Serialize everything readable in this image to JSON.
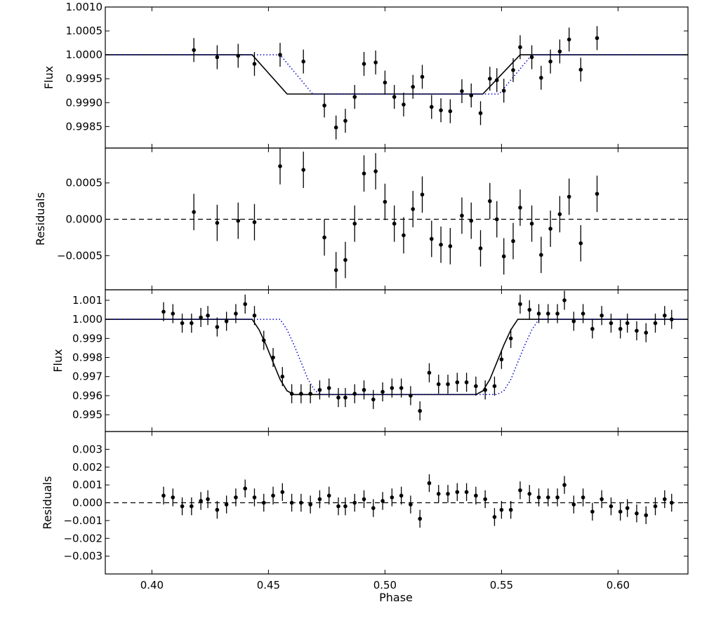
{
  "chart_data": {
    "type": "scatter",
    "xlabel": "Phase",
    "xlim": [
      0.38,
      0.63
    ],
    "xticks": [
      "0.40",
      "0.45",
      "0.50",
      "0.55",
      "0.60"
    ],
    "xtick_values": [
      0.4,
      0.45,
      0.5,
      0.55,
      0.6
    ],
    "grid": false,
    "panels": [
      {
        "id": "flux-top",
        "ylabel": "Flux",
        "ylim": [
          0.99805,
          1.001
        ],
        "yticks": [
          "0.9985",
          "0.9990",
          "0.9995",
          "1.0000",
          "1.0005",
          "1.0010"
        ],
        "ytick_values": [
          0.9985,
          0.999,
          0.9995,
          1.0,
          1.0005,
          1.001
        ],
        "points": {
          "x": [
            0.418,
            0.428,
            0.437,
            0.444,
            0.455,
            0.465,
            0.474,
            0.479,
            0.483,
            0.487,
            0.491,
            0.496,
            0.5,
            0.504,
            0.508,
            0.512,
            0.516,
            0.52,
            0.524,
            0.528,
            0.533,
            0.537,
            0.541,
            0.545,
            0.548,
            0.551,
            0.555,
            0.558,
            0.563,
            0.567,
            0.571,
            0.575,
            0.579,
            0.584,
            0.591
          ],
          "y": [
            1.0001,
            0.99995,
            0.99998,
            0.99981,
            1.0,
            0.99986,
            0.99894,
            0.99848,
            0.99862,
            0.99912,
            0.99981,
            0.99984,
            0.99942,
            0.99912,
            0.99896,
            0.99933,
            0.99954,
            0.99891,
            0.99884,
            0.99882,
            0.99924,
            0.99915,
            0.99878,
            0.9995,
            0.99947,
            0.99925,
            0.99968,
            1.00016,
            0.99995,
            0.99952,
            0.99986,
            1.00007,
            1.00032,
            0.99969,
            1.00035
          ],
          "err": [
            0.00025,
            0.00025,
            0.00025,
            0.00025,
            0.00025,
            0.00025,
            0.00025,
            0.00025,
            0.00025,
            0.00025,
            0.00025,
            0.00025,
            0.00025,
            0.00025,
            0.00025,
            0.00025,
            0.00025,
            0.00025,
            0.00025,
            0.00025,
            0.00025,
            0.00025,
            0.00025,
            0.00025,
            0.00025,
            0.00025,
            0.00025,
            0.00025,
            0.00025,
            0.00025,
            0.00025,
            0.00025,
            0.00025,
            0.00025,
            0.00025
          ]
        },
        "models": [
          {
            "style": "solid",
            "color": "#000000",
            "x": [
              0.38,
              0.443,
              0.458,
              0.542,
              0.558,
              0.63
            ],
            "y": [
              1.0,
              1.0,
              0.99918,
              0.99918,
              1.0,
              1.0
            ]
          },
          {
            "style": "dotted",
            "color": "#0000cc",
            "x": [
              0.38,
              0.455,
              0.469,
              0.549,
              0.563,
              0.63
            ],
            "y": [
              1.0,
              1.0,
              0.99918,
              0.99918,
              1.0,
              1.0
            ]
          }
        ]
      },
      {
        "id": "residuals-top",
        "ylabel": "Residuals",
        "ylim": [
          -0.00097,
          0.00098
        ],
        "yticks": [
          "−0.0005",
          "0.0000",
          "0.0005"
        ],
        "ytick_values": [
          -0.0005,
          0.0,
          0.0005
        ],
        "zero_line": true,
        "points": {
          "x": [
            0.418,
            0.428,
            0.437,
            0.444,
            0.455,
            0.465,
            0.474,
            0.479,
            0.483,
            0.487,
            0.491,
            0.496,
            0.5,
            0.504,
            0.508,
            0.512,
            0.516,
            0.52,
            0.524,
            0.528,
            0.533,
            0.537,
            0.541,
            0.545,
            0.548,
            0.551,
            0.555,
            0.558,
            0.563,
            0.567,
            0.571,
            0.575,
            0.579,
            0.584,
            0.591
          ],
          "y": [
            0.0001,
            -5e-05,
            -2e-05,
            -4e-05,
            0.00073,
            0.00068,
            -0.00025,
            -0.0007,
            -0.00056,
            -6e-05,
            0.00063,
            0.00066,
            0.00024,
            -6e-05,
            -0.00022,
            0.00014,
            0.00034,
            -0.00027,
            -0.00035,
            -0.00037,
            5e-05,
            -2e-05,
            -0.0004,
            0.00025,
            0.0,
            -0.00051,
            -0.0003,
            0.00016,
            -6e-05,
            -0.00049,
            -0.00013,
            7e-05,
            0.00031,
            -0.00033,
            0.00035
          ],
          "err": [
            0.00025,
            0.00025,
            0.00025,
            0.00025,
            0.00025,
            0.00025,
            0.00025,
            0.00025,
            0.00025,
            0.00025,
            0.00025,
            0.00025,
            0.00025,
            0.00025,
            0.00025,
            0.00025,
            0.00025,
            0.00025,
            0.00025,
            0.00025,
            0.00025,
            0.00025,
            0.00025,
            0.00025,
            0.00025,
            0.00025,
            0.00025,
            0.00025,
            0.00025,
            0.00025,
            0.00025,
            0.00025,
            0.00025,
            0.00025,
            0.00025
          ]
        }
      },
      {
        "id": "flux-bottom",
        "ylabel": "Flux",
        "ylim": [
          0.99412,
          1.00155
        ],
        "yticks": [
          "0.995",
          "0.996",
          "0.997",
          "0.998",
          "0.999",
          "1.000",
          "1.001"
        ],
        "ytick_values": [
          0.995,
          0.996,
          0.997,
          0.998,
          0.999,
          1.0,
          1.001
        ],
        "points": {
          "x": [
            0.405,
            0.409,
            0.413,
            0.417,
            0.421,
            0.424,
            0.428,
            0.432,
            0.436,
            0.44,
            0.444,
            0.448,
            0.452,
            0.456,
            0.46,
            0.464,
            0.468,
            0.472,
            0.476,
            0.48,
            0.483,
            0.487,
            0.491,
            0.495,
            0.499,
            0.503,
            0.507,
            0.511,
            0.515,
            0.519,
            0.523,
            0.527,
            0.531,
            0.535,
            0.539,
            0.543,
            0.547,
            0.55,
            0.554,
            0.558,
            0.562,
            0.566,
            0.57,
            0.574,
            0.577,
            0.581,
            0.585,
            0.589,
            0.593,
            0.597,
            0.601,
            0.604,
            0.608,
            0.612,
            0.616,
            0.62,
            0.623
          ],
          "y": [
            1.0004,
            1.0003,
            0.9998,
            0.9998,
            1.0001,
            1.0002,
            0.9996,
            0.9999,
            1.0003,
            1.0008,
            1.0002,
            0.9989,
            0.998,
            0.997,
            0.9961,
            0.9961,
            0.9961,
            0.9963,
            0.9964,
            0.9959,
            0.9959,
            0.9961,
            0.9963,
            0.9958,
            0.9962,
            0.9964,
            0.9964,
            0.996,
            0.9952,
            0.9972,
            0.9966,
            0.9966,
            0.9967,
            0.9967,
            0.9965,
            0.9963,
            0.9965,
            0.9979,
            0.999,
            1.0008,
            1.0005,
            1.0003,
            1.0003,
            1.0003,
            1.001,
            0.9999,
            1.0003,
            0.9995,
            1.0002,
            0.9998,
            0.9995,
            0.9998,
            0.9994,
            0.9993,
            0.9998,
            1.0002,
            1.0
          ],
          "err": [
            0.0005,
            0.0005,
            0.0005,
            0.0005,
            0.0005,
            0.0005,
            0.0005,
            0.0005,
            0.0005,
            0.0005,
            0.0005,
            0.0005,
            0.0005,
            0.0005,
            0.0005,
            0.0005,
            0.0005,
            0.0005,
            0.0005,
            0.0005,
            0.0005,
            0.0005,
            0.0005,
            0.0005,
            0.0005,
            0.0005,
            0.0005,
            0.0005,
            0.0005,
            0.0005,
            0.0005,
            0.0005,
            0.0005,
            0.0005,
            0.0005,
            0.0005,
            0.0005,
            0.0005,
            0.0005,
            0.0005,
            0.0005,
            0.0005,
            0.0005,
            0.0005,
            0.0005,
            0.0005,
            0.0005,
            0.0005,
            0.0005,
            0.0005,
            0.0005,
            0.0005,
            0.0005,
            0.0005,
            0.0005,
            0.0005,
            0.0005
          ]
        },
        "models": [
          {
            "style": "solid",
            "color": "#000000",
            "x": [
              0.38,
              0.443,
              0.446,
              0.449,
              0.452,
              0.455,
              0.458,
              0.461,
              0.539,
              0.542,
              0.545,
              0.548,
              0.551,
              0.554,
              0.557,
              0.63
            ],
            "y": [
              1.0,
              1.0,
              0.99945,
              0.99865,
              0.99775,
              0.99685,
              0.99625,
              0.99606,
              0.99606,
              0.99625,
              0.99685,
              0.99775,
              0.99865,
              0.99945,
              1.0,
              1.0
            ]
          },
          {
            "style": "dotted",
            "color": "#0000cc",
            "x": [
              0.38,
              0.455,
              0.458,
              0.461,
              0.464,
              0.467,
              0.47,
              0.473,
              0.548,
              0.551,
              0.554,
              0.557,
              0.56,
              0.563,
              0.566,
              0.63
            ],
            "y": [
              1.0,
              1.0,
              0.99945,
              0.99865,
              0.99775,
              0.99685,
              0.99625,
              0.99606,
              0.99606,
              0.99625,
              0.99685,
              0.99775,
              0.99865,
              0.99945,
              1.0,
              1.0
            ]
          }
        ]
      },
      {
        "id": "residuals-bottom",
        "ylabel": "Residuals",
        "ylim": [
          -0.004,
          0.004
        ],
        "yticks": [
          "−0.003",
          "−0.002",
          "−0.001",
          "0.000",
          "0.001",
          "0.002",
          "0.003"
        ],
        "ytick_values": [
          -0.003,
          -0.002,
          -0.001,
          0.0,
          0.001,
          0.002,
          0.003
        ],
        "zero_line": true,
        "points": {
          "x": [
            0.405,
            0.409,
            0.413,
            0.417,
            0.421,
            0.424,
            0.428,
            0.432,
            0.436,
            0.44,
            0.444,
            0.448,
            0.452,
            0.456,
            0.46,
            0.464,
            0.468,
            0.472,
            0.476,
            0.48,
            0.483,
            0.487,
            0.491,
            0.495,
            0.499,
            0.503,
            0.507,
            0.511,
            0.515,
            0.519,
            0.523,
            0.527,
            0.531,
            0.535,
            0.539,
            0.543,
            0.547,
            0.55,
            0.554,
            0.558,
            0.562,
            0.566,
            0.57,
            0.574,
            0.577,
            0.581,
            0.585,
            0.589,
            0.593,
            0.597,
            0.601,
            0.604,
            0.608,
            0.612,
            0.616,
            0.62,
            0.623
          ],
          "y": [
            0.0004,
            0.0003,
            -0.0002,
            -0.0002,
            0.0001,
            0.0002,
            -0.0004,
            -0.0001,
            0.0003,
            0.0008,
            0.0003,
            0.0,
            0.0004,
            0.0006,
            0.0,
            0.0,
            -0.0001,
            0.0002,
            0.0004,
            -0.0002,
            -0.0002,
            0.0,
            0.0002,
            -0.0003,
            0.0001,
            0.0003,
            0.0004,
            -0.0001,
            -0.0009,
            0.0011,
            0.0005,
            0.0005,
            0.0006,
            0.0006,
            0.0004,
            0.0002,
            -0.0008,
            -0.0004,
            -0.0004,
            0.0007,
            0.0005,
            0.0003,
            0.0003,
            0.0003,
            0.001,
            -0.0001,
            0.0003,
            -0.0005,
            0.0002,
            -0.0002,
            -0.0005,
            -0.0003,
            -0.0006,
            -0.0007,
            -0.0002,
            0.0002,
            0.0
          ],
          "err": [
            0.0005,
            0.0005,
            0.0005,
            0.0005,
            0.0005,
            0.0005,
            0.0005,
            0.0005,
            0.0005,
            0.0005,
            0.0005,
            0.0005,
            0.0005,
            0.0005,
            0.0005,
            0.0005,
            0.0005,
            0.0005,
            0.0005,
            0.0005,
            0.0005,
            0.0005,
            0.0005,
            0.0005,
            0.0005,
            0.0005,
            0.0005,
            0.0005,
            0.0005,
            0.0005,
            0.0005,
            0.0005,
            0.0005,
            0.0005,
            0.0005,
            0.0005,
            0.0005,
            0.0005,
            0.0005,
            0.0005,
            0.0005,
            0.0005,
            0.0005,
            0.0005,
            0.0005,
            0.0005,
            0.0005,
            0.0005,
            0.0005,
            0.0005,
            0.0005,
            0.0005,
            0.0005,
            0.0005,
            0.0005,
            0.0005,
            0.0005
          ]
        }
      }
    ]
  }
}
